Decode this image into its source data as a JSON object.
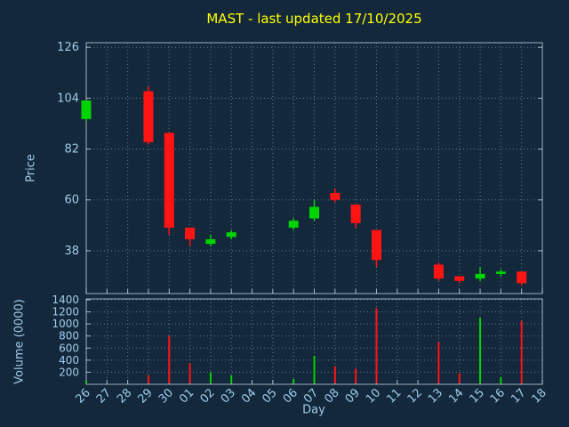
{
  "title": "MAST - last updated 17/10/2025",
  "axes": {
    "price_label": "Price",
    "volume_label": "Volume (0000)",
    "x_label": "Day"
  },
  "colors": {
    "background": "#14283c",
    "title": "#ffff00",
    "tick_text": "#9fcbe8",
    "grid": "#c8d8e8",
    "border": "#c8d8e8",
    "up": "#00d400",
    "down": "#ff1414"
  },
  "chart_data": [
    {
      "type": "candlestick",
      "title": "MAST - last updated 17/10/2025",
      "xlabel": "Day",
      "ylabel": "Price",
      "x_categories": [
        "26",
        "27",
        "28",
        "29",
        "30",
        "01",
        "02",
        "03",
        "04",
        "05",
        "06",
        "07",
        "08",
        "09",
        "10",
        "11",
        "12",
        "13",
        "14",
        "15",
        "16",
        "17",
        "18"
      ],
      "y_ticks": [
        38,
        60,
        82,
        104,
        126
      ],
      "ylim": [
        19.5,
        128
      ],
      "grid": true,
      "candles": [
        {
          "day": "26",
          "open": 95,
          "high": 103,
          "low": 94,
          "close": 103
        },
        {
          "day": "29",
          "open": 107,
          "high": 109,
          "low": 84,
          "close": 85
        },
        {
          "day": "30",
          "open": 89,
          "high": 89,
          "low": 45,
          "close": 48
        },
        {
          "day": "01",
          "open": 48,
          "high": 48,
          "low": 40,
          "close": 43
        },
        {
          "day": "02",
          "open": 41,
          "high": 45,
          "low": 40,
          "close": 43
        },
        {
          "day": "03",
          "open": 44,
          "high": 47,
          "low": 43,
          "close": 46
        },
        {
          "day": "06",
          "open": 48,
          "high": 52,
          "low": 47,
          "close": 51
        },
        {
          "day": "07",
          "open": 52,
          "high": 60,
          "low": 51,
          "close": 57
        },
        {
          "day": "08",
          "open": 63,
          "high": 65,
          "low": 59,
          "close": 60
        },
        {
          "day": "09",
          "open": 58,
          "high": 58,
          "low": 48,
          "close": 50
        },
        {
          "day": "10",
          "open": 47,
          "high": 47,
          "low": 31,
          "close": 34
        },
        {
          "day": "13",
          "open": 32,
          "high": 33,
          "low": 25,
          "close": 26
        },
        {
          "day": "14",
          "open": 27,
          "high": 27,
          "low": 24,
          "close": 25
        },
        {
          "day": "15",
          "open": 26,
          "high": 31,
          "low": 25,
          "close": 28
        },
        {
          "day": "16",
          "open": 28,
          "high": 30,
          "low": 27,
          "close": 29
        },
        {
          "day": "17",
          "open": 29,
          "high": 29,
          "low": 23,
          "close": 24
        }
      ]
    },
    {
      "type": "bar",
      "ylabel": "Volume (0000)",
      "y_ticks": [
        200,
        400,
        600,
        800,
        1000,
        1200,
        1400
      ],
      "ylim": [
        0,
        1415
      ],
      "grid": true,
      "bars": [
        {
          "day": "26",
          "value": 60,
          "dir": "up"
        },
        {
          "day": "29",
          "value": 150,
          "dir": "down"
        },
        {
          "day": "30",
          "value": 800,
          "dir": "down"
        },
        {
          "day": "01",
          "value": 350,
          "dir": "down"
        },
        {
          "day": "02",
          "value": 200,
          "dir": "up"
        },
        {
          "day": "03",
          "value": 150,
          "dir": "up"
        },
        {
          "day": "06",
          "value": 90,
          "dir": "up"
        },
        {
          "day": "07",
          "value": 470,
          "dir": "up"
        },
        {
          "day": "08",
          "value": 300,
          "dir": "down"
        },
        {
          "day": "09",
          "value": 260,
          "dir": "down"
        },
        {
          "day": "10",
          "value": 1260,
          "dir": "down"
        },
        {
          "day": "13",
          "value": 700,
          "dir": "down"
        },
        {
          "day": "14",
          "value": 180,
          "dir": "down"
        },
        {
          "day": "15",
          "value": 1100,
          "dir": "up"
        },
        {
          "day": "16",
          "value": 120,
          "dir": "up"
        },
        {
          "day": "17",
          "value": 1050,
          "dir": "down"
        }
      ]
    }
  ]
}
